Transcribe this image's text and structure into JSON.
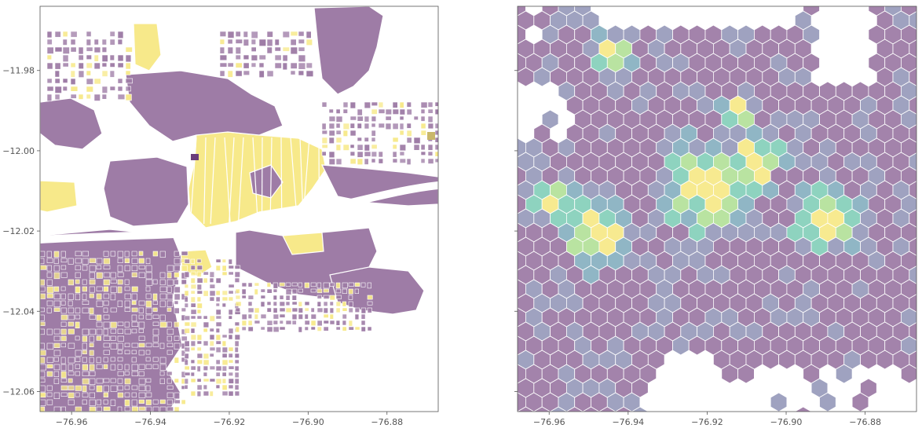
{
  "figure": {
    "panels": [
      {
        "id": "left",
        "kind": "polygon-choropleth",
        "x_ticks": [
          "−76.96",
          "−76.94",
          "−76.92",
          "−76.90",
          "−76.88"
        ],
        "y_ticks": [
          "−11.98",
          "−12.00",
          "−12.02",
          "−12.04",
          "−12.06"
        ],
        "show_y_labels": true
      },
      {
        "id": "right",
        "kind": "hexbin",
        "x_ticks": [
          "−76.96",
          "−76.94",
          "−76.92",
          "−76.90",
          "−76.88"
        ],
        "y_ticks": [
          "−11.98",
          "−12.00",
          "−12.02",
          "−12.04",
          "−12.06"
        ],
        "show_y_labels": false
      }
    ],
    "colors": {
      "purple": "#9e7ca6",
      "dark_purple": "#6a3d7a",
      "blue_purple": "#9a9dbd",
      "blue": "#8ab2c2",
      "teal": "#88d1bc",
      "green": "#b5e19c",
      "yellow": "#f7e98a",
      "axis": "#555555"
    }
  },
  "chart_data": [
    {
      "type": "map",
      "xlim": [
        -76.968,
        -76.867
      ],
      "ylim": [
        -12.065,
        -11.964
      ],
      "x_ticks": [
        -76.96,
        -76.94,
        -76.92,
        -76.9,
        -76.88
      ],
      "y_ticks": [
        -11.98,
        -12.0,
        -12.02,
        -12.04,
        -12.06
      ],
      "legend": "none",
      "grid": false
    },
    {
      "type": "heatmap",
      "xlim": [
        -76.968,
        -76.867
      ],
      "ylim": [
        -12.065,
        -11.964
      ],
      "x_ticks": [
        -76.96,
        -76.94,
        -76.92,
        -76.9,
        -76.88
      ],
      "y_ticks": [
        -11.98,
        -12.0,
        -12.02,
        -12.04,
        -12.06
      ],
      "legend": "none",
      "grid": false
    }
  ]
}
